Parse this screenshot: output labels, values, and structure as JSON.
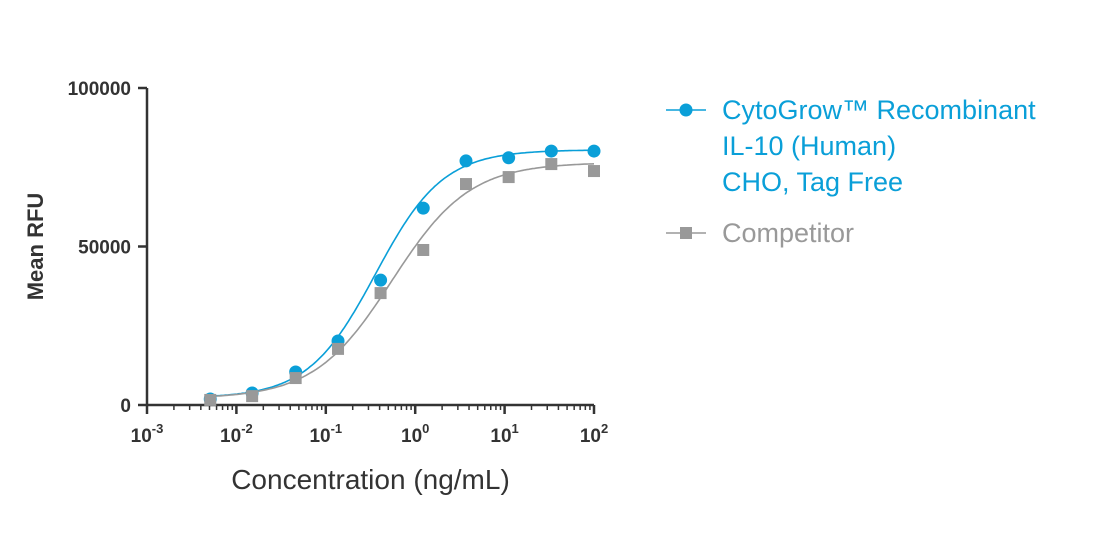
{
  "chart_data": {
    "type": "scatter",
    "title": "",
    "xlabel": "Concentration (ng/mL)",
    "ylabel": "Mean RFU",
    "xscale": "log",
    "xlim": [
      0.001,
      100
    ],
    "ylim": [
      0,
      100000
    ],
    "x_ticks": [
      {
        "base": "10",
        "exp": "-3"
      },
      {
        "base": "10",
        "exp": "-2"
      },
      {
        "base": "10",
        "exp": "-1"
      },
      {
        "base": "10",
        "exp": "0"
      },
      {
        "base": "10",
        "exp": "1"
      },
      {
        "base": "10",
        "exp": "2"
      }
    ],
    "y_ticks": [
      "0",
      "50000",
      "100000"
    ],
    "y_tick_values": [
      0,
      50000,
      100000
    ],
    "legend_position": "right",
    "series": [
      {
        "name": "CytoGrow™ Recombinant IL-10 (Human) CHO, Tag Free",
        "legend_lines": [
          "CytoGrow™ Recombinant",
          "IL-10 (Human)",
          "CHO, Tag Free"
        ],
        "color": "#0a9fd8",
        "marker": "circle",
        "x": [
          0.0051,
          0.015,
          0.046,
          0.137,
          0.41,
          1.23,
          3.7,
          11.1,
          33.3,
          100
        ],
        "y": [
          1900,
          3800,
          10400,
          20200,
          39400,
          62100,
          77000,
          78000,
          80100,
          80100
        ],
        "fit": {
          "bottom": 2200,
          "top": 80500,
          "ec50": 0.36,
          "hill": 1.15
        }
      },
      {
        "name": "Competitor",
        "legend_lines": [
          "Competitor"
        ],
        "color": "#999999",
        "marker": "square",
        "x": [
          0.0051,
          0.015,
          0.046,
          0.137,
          0.41,
          1.23,
          3.7,
          11.1,
          33.3,
          100
        ],
        "y": [
          1600,
          2800,
          8500,
          17700,
          35300,
          48900,
          69700,
          71900,
          76000,
          73800
        ],
        "fit": {
          "bottom": 2000,
          "top": 76500,
          "ec50": 0.55,
          "hill": 1.0
        }
      }
    ]
  }
}
